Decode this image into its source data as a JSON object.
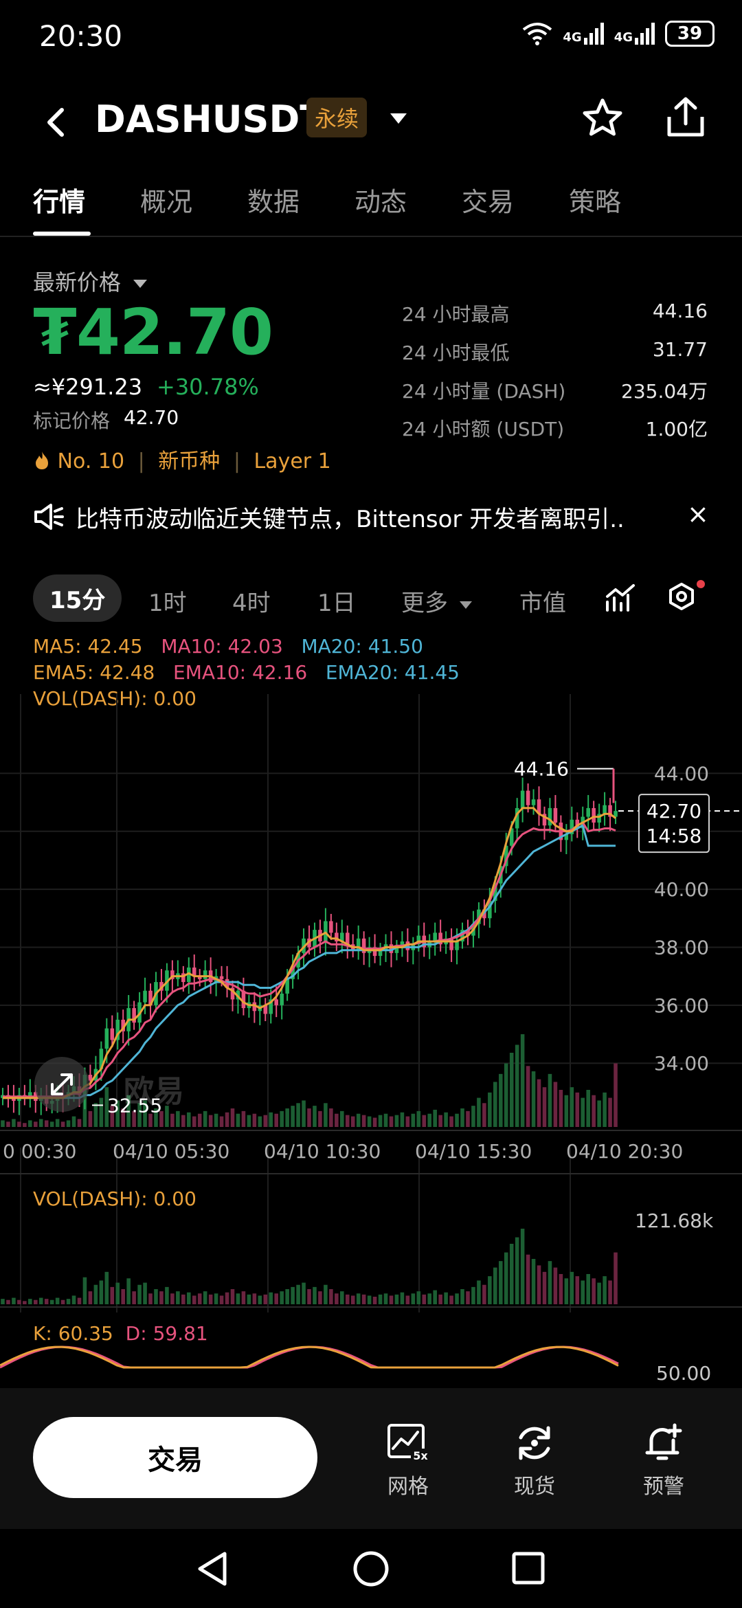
{
  "status": {
    "time": "20:30",
    "net1": "4G",
    "net2": "4G",
    "battery": "39"
  },
  "header": {
    "symbol": "DASHUSDT",
    "type_badge": "永续"
  },
  "tabs": [
    "行情",
    "概况",
    "数据",
    "动态",
    "交易",
    "策略"
  ],
  "price": {
    "label": "最新价格",
    "last": "₮42.70",
    "cny": "≈¥291.23",
    "change": "+30.78%",
    "mark_label": "标记价格",
    "mark_value": "42.70",
    "rank": "No. 10",
    "tag1": "新币种",
    "tag2": "Layer 1",
    "sep": "|"
  },
  "stats": [
    {
      "k": "24 小时最高",
      "v": "44.16"
    },
    {
      "k": "24 小时最低",
      "v": "31.77"
    },
    {
      "k": "24 小时量 (DASH)",
      "v": "235.04万"
    },
    {
      "k": "24 小时额 (USDT)",
      "v": "1.00亿"
    }
  ],
  "news": {
    "text": "比特币波动临近关键节点，Bittensor 开发者离职引..",
    "close": "×"
  },
  "intervals": [
    "15分",
    "1时",
    "4时",
    "1日",
    "更多",
    "市值"
  ],
  "indicators": {
    "ma5": "MA5: 42.45",
    "ma10": "MA10: 42.03",
    "ma20": "MA20: 41.50",
    "ema5": "EMA5: 42.48",
    "ema10": "EMA10: 42.16",
    "ema20": "EMA20: 41.45",
    "vol": "VOL(DASH): 0.00"
  },
  "chart_data": {
    "type": "candlestick",
    "y_ticks": [
      "44.00",
      "42.00",
      "40.00",
      "38.00",
      "36.00",
      "34.00"
    ],
    "ylim": [
      31.8,
      44.6
    ],
    "x_ticks": [
      "0 00:30",
      "04/10 05:30",
      "04/10 10:30",
      "04/10 15:30",
      "04/10 20:30"
    ],
    "high_label": "44.16",
    "low_label": "32.55",
    "current_price": "42.70",
    "countdown": "14:58",
    "close": [
      32.9,
      32.8,
      32.7,
      32.9,
      32.8,
      33.0,
      32.7,
      32.8,
      32.6,
      32.7,
      32.9,
      32.8,
      33.0,
      33.2,
      32.9,
      33.6,
      33.4,
      33.8,
      34.5,
      35.2,
      34.8,
      35.5,
      35.1,
      35.9,
      35.4,
      36.1,
      36.5,
      36.0,
      36.8,
      36.5,
      37.2,
      36.9,
      37.1,
      36.8,
      37.3,
      37.0,
      36.9,
      37.2,
      36.8,
      37.0,
      36.9,
      36.6,
      36.2,
      36.5,
      35.9,
      36.1,
      35.8,
      36.0,
      35.7,
      36.2,
      36.0,
      36.4,
      36.9,
      37.3,
      37.8,
      38.3,
      38.0,
      38.6,
      38.2,
      38.9,
      38.5,
      38.2,
      38.5,
      38.1,
      37.9,
      38.3,
      37.8,
      38.0,
      37.7,
      37.9,
      38.1,
      37.8,
      38.0,
      38.2,
      37.9,
      38.1,
      38.4,
      38.0,
      38.2,
      38.5,
      38.1,
      38.3,
      37.9,
      38.2,
      38.6,
      38.4,
      38.8,
      39.3,
      39.0,
      39.6,
      40.2,
      40.8,
      41.5,
      42.1,
      42.8,
      43.4,
      42.9,
      43.1,
      42.6,
      42.2,
      42.8,
      42.3,
      41.7,
      41.9,
      42.4,
      42.1,
      42.5,
      42.8,
      42.3,
      42.6,
      42.9,
      42.5,
      42.7
    ],
    "ma5": [
      32.8,
      32.8,
      32.8,
      32.8,
      32.8,
      32.8,
      32.8,
      32.8,
      32.8,
      32.8,
      32.8,
      32.8,
      32.9,
      33.0,
      33.0,
      33.2,
      33.3,
      33.6,
      33.8,
      34.3,
      34.6,
      35.0,
      35.2,
      35.5,
      35.5,
      35.7,
      36.0,
      36.0,
      36.4,
      36.6,
      36.8,
      37.0,
      37.0,
      37.0,
      37.1,
      37.0,
      37.0,
      37.0,
      37.0,
      36.9,
      36.8,
      36.6,
      36.5,
      36.3,
      36.1,
      36.0,
      36.0,
      35.9,
      36.0,
      36.1,
      36.3,
      36.6,
      37.0,
      37.4,
      37.8,
      38.0,
      38.2,
      38.3,
      38.4,
      38.5,
      38.3,
      38.3,
      38.2,
      38.1,
      38.0,
      38.0,
      37.9,
      37.9,
      37.9,
      37.9,
      38.0,
      38.0,
      38.0,
      38.0,
      38.1,
      38.1,
      38.2,
      38.2,
      38.2,
      38.2,
      38.2,
      38.2,
      38.2,
      38.2,
      38.3,
      38.4,
      38.6,
      38.9,
      39.3,
      39.7,
      40.3,
      40.9,
      41.6,
      42.2,
      42.6,
      42.8,
      42.8,
      42.8,
      42.6,
      42.5,
      42.4,
      42.2,
      42.1,
      42.0,
      42.0,
      42.2,
      42.3,
      42.4,
      42.5,
      42.5,
      42.6,
      42.6,
      42.45
    ],
    "ma20": [
      32.8,
      32.8,
      32.8,
      32.8,
      32.8,
      32.8,
      32.8,
      32.8,
      32.8,
      32.8,
      32.8,
      32.8,
      32.8,
      32.8,
      32.8,
      32.9,
      32.9,
      33.0,
      33.1,
      33.3,
      33.4,
      33.6,
      33.8,
      34.0,
      34.2,
      34.4,
      34.7,
      34.9,
      35.2,
      35.4,
      35.6,
      35.8,
      36.0,
      36.1,
      36.3,
      36.4,
      36.5,
      36.6,
      36.7,
      36.8,
      36.8,
      36.8,
      36.8,
      36.8,
      36.7,
      36.7,
      36.7,
      36.6,
      36.6,
      36.6,
      36.7,
      36.8,
      36.9,
      37.0,
      37.2,
      37.3,
      37.5,
      37.6,
      37.7,
      37.8,
      37.8,
      37.8,
      37.9,
      37.9,
      37.9,
      37.9,
      37.9,
      37.9,
      37.9,
      37.9,
      37.9,
      37.9,
      38.0,
      38.0,
      38.0,
      38.0,
      38.0,
      38.1,
      38.1,
      38.1,
      38.2,
      38.2,
      38.3,
      38.4,
      38.5,
      38.6,
      38.8,
      39.0,
      39.2,
      39.4,
      39.7,
      40.0,
      40.3,
      40.5,
      40.7,
      40.9,
      41.1,
      41.3,
      41.4,
      41.5,
      41.6,
      41.7,
      41.8,
      41.9,
      42.0,
      42.1,
      42.2,
      41.5,
      41.5,
      41.5,
      41.5,
      41.5,
      41.5
    ]
  },
  "volume": {
    "label": "VOL(DASH): 0.00",
    "max_label": "121.68k",
    "values": [
      5,
      4,
      6,
      4,
      3,
      5,
      4,
      6,
      5,
      4,
      6,
      4,
      5,
      8,
      6,
      25,
      12,
      18,
      22,
      30,
      16,
      20,
      14,
      24,
      12,
      18,
      20,
      10,
      14,
      12,
      16,
      10,
      12,
      9,
      11,
      8,
      10,
      12,
      9,
      10,
      8,
      11,
      14,
      10,
      12,
      9,
      10,
      8,
      9,
      11,
      10,
      12,
      14,
      16,
      18,
      20,
      14,
      16,
      12,
      18,
      14,
      10,
      12,
      9,
      8,
      10,
      9,
      8,
      7,
      9,
      10,
      8,
      9,
      11,
      8,
      10,
      12,
      9,
      10,
      13,
      9,
      11,
      8,
      10,
      14,
      12,
      16,
      22,
      18,
      26,
      34,
      40,
      48,
      56,
      62,
      70,
      46,
      42,
      36,
      30,
      40,
      34,
      28,
      24,
      30,
      26,
      22,
      28,
      24,
      20,
      26,
      22,
      48
    ],
    "up": [
      1,
      0,
      1,
      0,
      0,
      1,
      0,
      1,
      0,
      1,
      1,
      0,
      1,
      1,
      0,
      1,
      0,
      1,
      1,
      1,
      0,
      1,
      0,
      1,
      0,
      1,
      1,
      0,
      1,
      0,
      1,
      0,
      1,
      0,
      1,
      0,
      0,
      1,
      0,
      1,
      0,
      0,
      0,
      1,
      0,
      1,
      0,
      1,
      0,
      1,
      0,
      1,
      1,
      1,
      1,
      1,
      0,
      1,
      0,
      1,
      0,
      0,
      1,
      0,
      0,
      1,
      0,
      1,
      0,
      1,
      1,
      0,
      1,
      1,
      0,
      1,
      1,
      0,
      1,
      1,
      0,
      1,
      0,
      1,
      1,
      0,
      1,
      1,
      0,
      1,
      1,
      1,
      1,
      1,
      1,
      1,
      0,
      1,
      0,
      0,
      1,
      0,
      0,
      1,
      1,
      0,
      1,
      1,
      0,
      1,
      1,
      0,
      0
    ]
  },
  "kdj": {
    "k": "K: 60.35",
    "d": "D: 59.81",
    "level": "50.00"
  },
  "watermark": "欧易",
  "bottom": {
    "trade": "交易",
    "grid": "网格",
    "spot": "现货",
    "alert": "预警",
    "grid_badge": "5x"
  }
}
